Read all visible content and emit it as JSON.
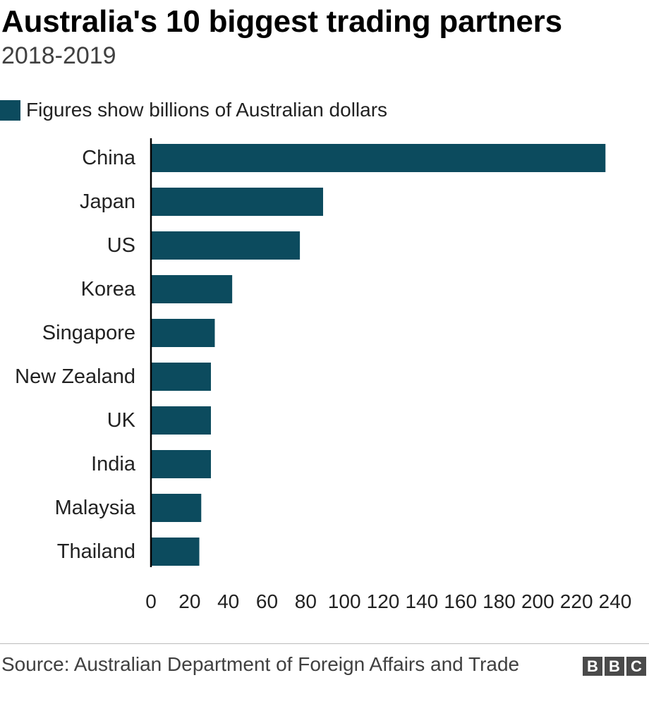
{
  "title": "Australia's 10 biggest trading partners",
  "subtitle": "2018-2019",
  "legend_label": "Figures show billions of Australian dollars",
  "source": "Source: Australian Department of Foreign Affairs and Trade",
  "logo": [
    "B",
    "B",
    "C"
  ],
  "colors": {
    "bar": "#0c4b5e",
    "axis": "#000000",
    "text": "#222222"
  },
  "chart_data": {
    "type": "bar",
    "orientation": "horizontal",
    "title": "Australia's 10 biggest trading partners",
    "subtitle": "2018-2019",
    "categories": [
      "China",
      "Japan",
      "US",
      "Korea",
      "Singapore",
      "New Zealand",
      "UK",
      "India",
      "Malaysia",
      "Thailand"
    ],
    "values": [
      235,
      89,
      77,
      42,
      33,
      31,
      31,
      31,
      26,
      25
    ],
    "xlim": [
      0,
      240
    ],
    "xticks": [
      0,
      20,
      40,
      60,
      80,
      100,
      120,
      140,
      160,
      180,
      200,
      220,
      240
    ],
    "xlabel": "",
    "ylabel": "",
    "legend": "Figures show billions of Australian dollars"
  }
}
